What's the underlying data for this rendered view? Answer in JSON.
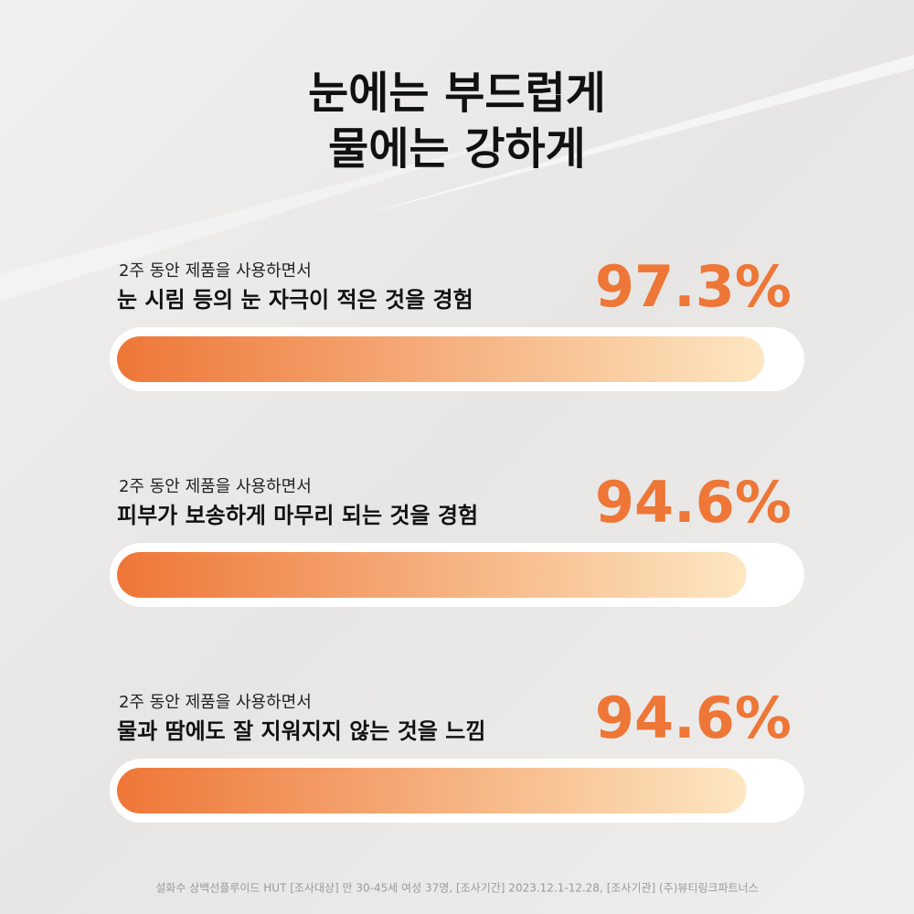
{
  "chart_data": {
    "type": "bar",
    "orientation": "horizontal",
    "title": [
      "눈에는 부드럽게",
      "물에는 강하게"
    ],
    "subtitles": [
      "2주 동안 제품을 사용하면서",
      "2주 동안 제품을 사용하면서",
      "2주 동안 제품을 사용하면서"
    ],
    "categories": [
      "눈 시림 등의 눈 자극이 적은 것을 경험",
      "피부가 보송하게 마무리 되는 것을 경험",
      "물과 땀에도 잘 지워지지 않는 것을 느낌"
    ],
    "values": [
      97.3,
      94.6,
      94.6
    ],
    "value_labels": [
      "97.3%",
      "94.6%",
      "94.6%"
    ],
    "xlim": [
      0,
      100
    ],
    "colors": [
      "#ee7637",
      "#fde7c2"
    ],
    "label_color": "#ee7637",
    "footnote": "설화수 상백선플루이드 HUT [조사대상] 만 30-45세 여성 37명, [조사기간] 2023.12.1-12.28, [조사기관] (주)뷰티링크파트너스"
  }
}
